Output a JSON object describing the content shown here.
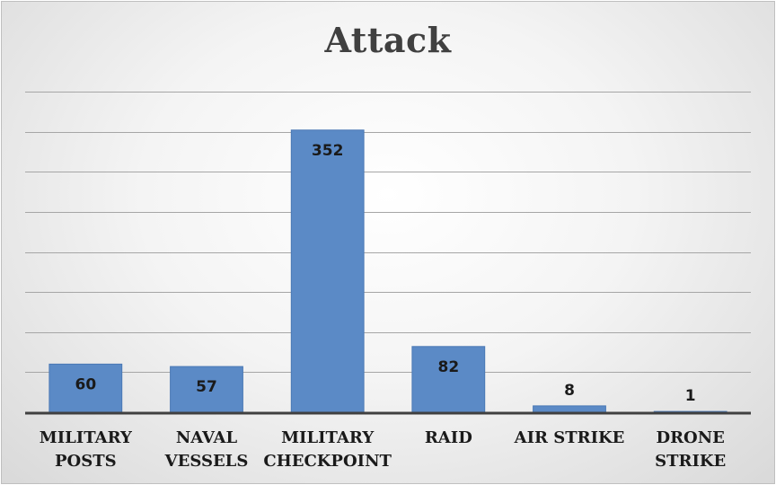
{
  "chart_data": {
    "type": "bar",
    "title": "Attack",
    "categories": [
      [
        "MILITARY",
        "POSTS"
      ],
      [
        "NAVAL",
        "VESSELS"
      ],
      [
        "MILITARY",
        "CHECKPOINT"
      ],
      [
        "RAID"
      ],
      [
        "AIR STRIKE"
      ],
      [
        "DRONE",
        "STRIKE"
      ]
    ],
    "values": [
      60,
      57,
      352,
      82,
      8,
      1
    ],
    "data_labels": [
      "60",
      "57",
      "352",
      "82",
      "8",
      "1"
    ],
    "ylim": [
      0,
      400
    ],
    "grid": true,
    "legend": "none",
    "colors": {
      "bar": "#5b8ac6",
      "bar_edge": "#4a78b5",
      "grid": "#a6a6a6",
      "axis": "#404040"
    }
  }
}
